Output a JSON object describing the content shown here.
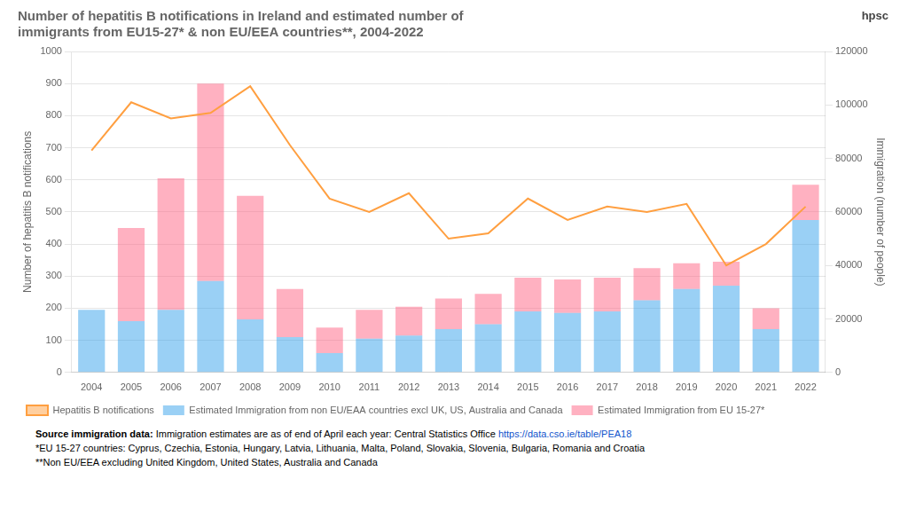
{
  "chart_data": {
    "type": "bar",
    "title": "Number of hepatitis B notifications in Ireland and estimated number of",
    "subtitle": "immigrants from EU15-27* & non EU/EEA countries**, 2004-2022",
    "categories": [
      "2004",
      "2005",
      "2006",
      "2007",
      "2008",
      "2009",
      "2010",
      "2011",
      "2012",
      "2013",
      "2014",
      "2015",
      "2016",
      "2017",
      "2018",
      "2019",
      "2020",
      "2021",
      "2022"
    ],
    "series": [
      {
        "name": "Estimated Immigration from non EU/EAA countries excl UK, US, Australia and Canada",
        "type": "bar",
        "values": [
          195,
          160,
          195,
          285,
          165,
          110,
          60,
          105,
          115,
          135,
          150,
          190,
          185,
          190,
          225,
          260,
          270,
          135,
          475
        ]
      },
      {
        "name": "Estimated Immigration from EU 15-27*",
        "type": "bar",
        "values": [
          0,
          290,
          410,
          615,
          385,
          150,
          80,
          90,
          90,
          95,
          95,
          105,
          105,
          105,
          100,
          80,
          75,
          65,
          110
        ]
      },
      {
        "name": "Hepatitis B notifications",
        "type": "line",
        "axis": "y2",
        "values": [
          83000,
          101000,
          95000,
          97000,
          107000,
          85000,
          65000,
          60000,
          67000,
          50000,
          52000,
          65000,
          57000,
          62000,
          60000,
          63000,
          40000,
          48000,
          62000
        ]
      }
    ],
    "stacked": true,
    "ylabel": "Number of hepatitis B notifications",
    "y2label": "Immigration (number of people)",
    "ylim": [
      0,
      1000
    ],
    "yticks": [
      0,
      100,
      200,
      300,
      400,
      500,
      600,
      700,
      800,
      900,
      1000
    ],
    "y2lim": [
      0,
      120000
    ],
    "y2ticks": [
      0,
      20000,
      40000,
      60000,
      80000,
      100000,
      120000
    ],
    "grid": true,
    "legend": "bottom",
    "annotations": [
      "hpsc",
      "Source immigration data:",
      "Immigration estimates are as of end of April each year: Central Statistics Office",
      "https://data.cso.ie/table/PEA18",
      "*EU 15-27 countries: Cyprus, Czechia, Estonia, Hungary, Latvia, Lithuania, Malta, Poland, Slovakia, Slovenia, Bulgaria, Romania and Croatia",
      "**Non EU/EEA excluding United Kingdom, United States, Australia and Canada"
    ]
  }
}
